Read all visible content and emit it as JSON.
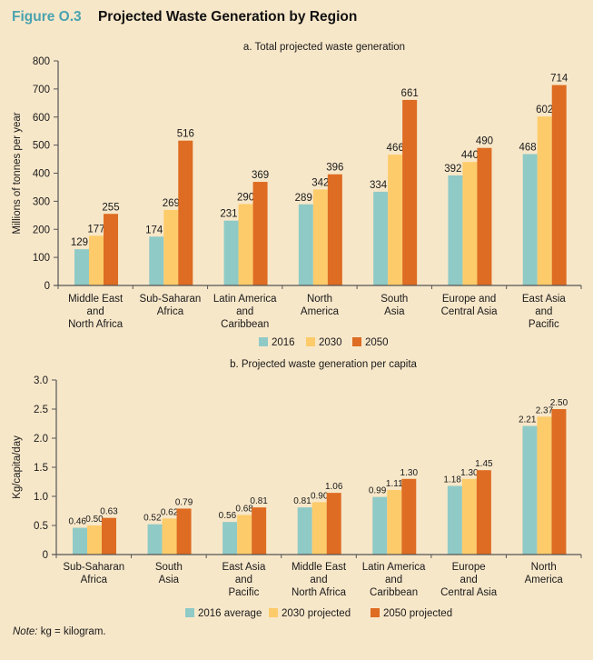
{
  "figure": {
    "number": "Figure O.3",
    "title": "Projected Waste Generation by Region",
    "note_label": "Note:",
    "note_text": "kg = kilogram."
  },
  "colors": {
    "series_2016": "#8fcac6",
    "series_2030": "#fdcb6a",
    "series_2050": "#de6c22",
    "axis": "#555555",
    "title_accent": "#4aa3b0",
    "background": "#f7e7c9"
  },
  "chart_data": [
    {
      "type": "bar",
      "title": "a. Total projected waste generation",
      "xlabel": "",
      "ylabel": "Millions of tonnes per year",
      "ylim": [
        0,
        800
      ],
      "yticks": [
        "0",
        "100",
        "200",
        "300",
        "400",
        "500",
        "600",
        "700",
        "800"
      ],
      "ytick_values": [
        0,
        100,
        200,
        300,
        400,
        500,
        600,
        700,
        800
      ],
      "grid": false,
      "legend_position": "bottom-center",
      "categories": [
        [
          "Middle East",
          "and",
          "North Africa"
        ],
        [
          "Sub-Saharan",
          "Africa"
        ],
        [
          "Latin America",
          "and",
          "Caribbean"
        ],
        [
          "North",
          "America"
        ],
        [
          "South",
          "Asia"
        ],
        [
          "Europe and",
          "Central Asia"
        ],
        [
          "East Asia",
          "and",
          "Pacific"
        ]
      ],
      "series": [
        {
          "name": "2016",
          "values": [
            129,
            174,
            231,
            289,
            334,
            392,
            468
          ],
          "labels": [
            "129",
            "174",
            "231",
            "289",
            "334",
            "392",
            "468"
          ]
        },
        {
          "name": "2030",
          "values": [
            177,
            269,
            290,
            342,
            466,
            440,
            602
          ],
          "labels": [
            "177",
            "269",
            "290",
            "342",
            "466",
            "440",
            "602"
          ]
        },
        {
          "name": "2050",
          "values": [
            255,
            516,
            369,
            396,
            661,
            490,
            714
          ],
          "labels": [
            "255",
            "516",
            "369",
            "396",
            "661",
            "490",
            "714"
          ]
        }
      ]
    },
    {
      "type": "bar",
      "title": "b. Projected waste generation per capita",
      "xlabel": "",
      "ylabel": "Kg/capita/day",
      "ylim": [
        0,
        3.0
      ],
      "yticks": [
        "0",
        "0.5",
        "1.0",
        "1.5",
        "2.0",
        "2.5",
        "3.0"
      ],
      "ytick_values": [
        0,
        0.5,
        1.0,
        1.5,
        2.0,
        2.5,
        3.0
      ],
      "grid": false,
      "legend_position": "bottom-center",
      "categories": [
        [
          "Sub-Saharan",
          "Africa"
        ],
        [
          "South",
          "Asia"
        ],
        [
          "East Asia",
          "and",
          "Pacific"
        ],
        [
          "Middle East",
          "and",
          "North Africa"
        ],
        [
          "Latin America",
          "and",
          "Caribbean"
        ],
        [
          "Europe",
          "and",
          "Central Asia"
        ],
        [
          "North",
          "America"
        ]
      ],
      "series": [
        {
          "name": "2016 average",
          "values": [
            0.46,
            0.52,
            0.56,
            0.81,
            0.99,
            1.18,
            2.21
          ],
          "labels": [
            "0.46",
            "0.52",
            "0.56",
            "0.81",
            "0.99",
            "1.18",
            "2.21"
          ]
        },
        {
          "name": "2030 projected",
          "values": [
            0.5,
            0.62,
            0.68,
            0.9,
            1.11,
            1.3,
            2.37
          ],
          "labels": [
            "0.50",
            "0.62",
            "0.68",
            "0.90",
            "1.11",
            "1.30",
            "2.37"
          ]
        },
        {
          "name": "2050 projected",
          "values": [
            0.63,
            0.79,
            0.81,
            1.06,
            1.3,
            1.45,
            2.5
          ],
          "labels": [
            "0.63",
            "0.79",
            "0.81",
            "1.06",
            "1.30",
            "1.45",
            "2.50"
          ]
        }
      ]
    }
  ]
}
